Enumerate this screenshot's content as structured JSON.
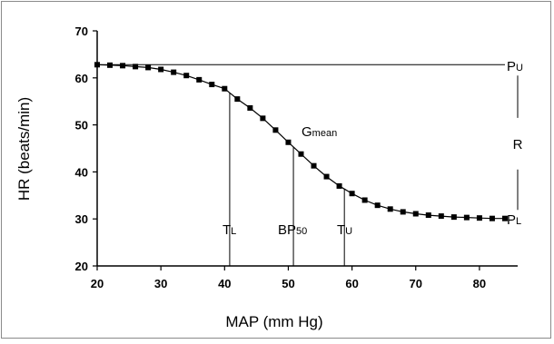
{
  "chart_data": {
    "type": "line",
    "title": "",
    "xlabel": "MAP (mm Hg)",
    "ylabel": "HR (beats/min)",
    "xlim": [
      20,
      86
    ],
    "ylim": [
      20,
      70
    ],
    "x_ticks": [
      20,
      30,
      40,
      50,
      60,
      70,
      80
    ],
    "y_ticks": [
      20,
      30,
      40,
      50,
      60,
      70
    ],
    "grid": false,
    "legend": "none",
    "series": [
      {
        "marker": "square",
        "color": "#000000",
        "x": [
          20,
          22,
          24,
          26,
          28,
          30,
          32,
          34,
          36,
          38,
          40,
          42,
          44,
          46,
          48,
          50,
          52,
          54,
          56,
          58,
          60,
          62,
          64,
          66,
          68,
          70,
          72,
          74,
          76,
          78,
          80,
          82,
          84
        ],
        "y": [
          62.8,
          62.7,
          62.6,
          62.4,
          62.2,
          61.8,
          61.2,
          60.5,
          59.6,
          58.6,
          57.7,
          55.5,
          53.6,
          51.4,
          48.9,
          46.3,
          43.8,
          41.3,
          39.0,
          37.0,
          35.4,
          34.0,
          32.9,
          32.1,
          31.5,
          31.1,
          30.8,
          30.6,
          30.4,
          30.3,
          30.2,
          30.1,
          30.1
        ]
      }
    ],
    "reference_lines": {
      "upper_plateau": 62.8,
      "lower_plateau": 30.0,
      "T_L": 40.8,
      "BP50": 50.8,
      "T_U": 58.8
    },
    "annotations": {
      "pu": {
        "main": "P",
        "sub": "U"
      },
      "pl": {
        "main": "P",
        "sub": "L"
      },
      "r": "R",
      "gmean": {
        "main": "G",
        "sub": "mean"
      },
      "tl": {
        "main": "T",
        "sub": "L"
      },
      "bp50": {
        "main": "BP",
        "sub": "50"
      },
      "tu": {
        "main": "T",
        "sub": "U"
      }
    }
  }
}
